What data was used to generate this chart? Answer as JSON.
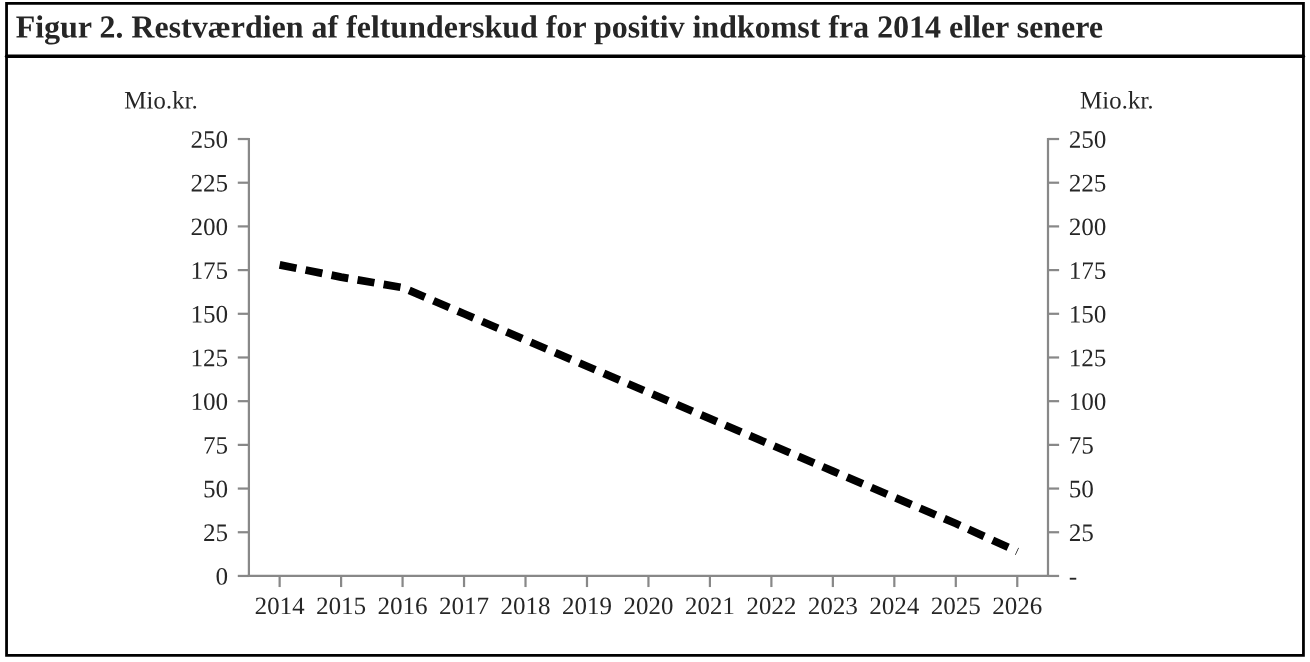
{
  "chart_data": {
    "type": "line",
    "title": "Figur 2. Restværdien af feltunderskud for positiv indkomst fra 2014 eller senere",
    "ylabel": "Mio.kr.",
    "y2label": "Mio.kr.",
    "categories": [
      "2014",
      "2015",
      "2016",
      "2017",
      "2018",
      "2019",
      "2020",
      "2021",
      "2022",
      "2023",
      "2024",
      "2025",
      "2026"
    ],
    "series": [
      {
        "color": "#000000",
        "line_style": "dashed",
        "values": [
          178,
          171,
          165,
          150,
          135,
          120,
          105,
          90,
          75,
          60,
          45,
          30,
          14
        ]
      }
    ],
    "ylim": [
      0,
      250
    ],
    "yticks": [
      0,
      25,
      50,
      75,
      100,
      125,
      150,
      175,
      200,
      225,
      250
    ],
    "y2lim": [
      0,
      250
    ],
    "y2ticks": [
      {
        "value": 0,
        "label": "-"
      },
      25,
      50,
      75,
      100,
      125,
      150,
      175,
      200,
      225,
      250
    ],
    "grid": false,
    "legend": false,
    "marker": "none"
  }
}
